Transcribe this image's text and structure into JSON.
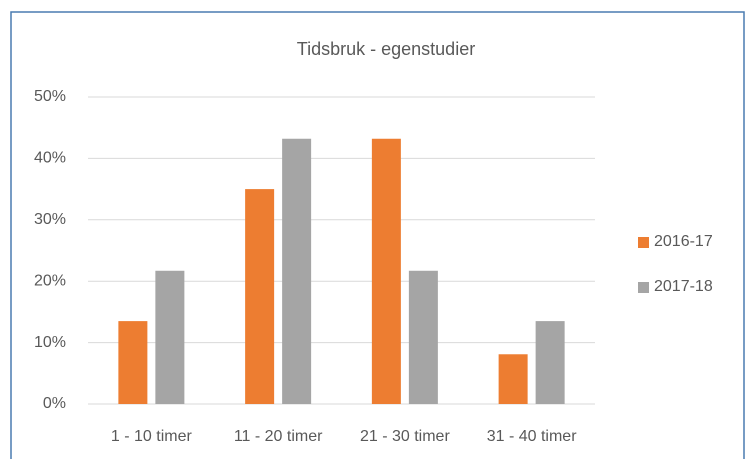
{
  "chart_data": {
    "type": "bar",
    "title": "Tidsbruk - egenstudier",
    "categories": [
      "1 - 10 timer",
      "11 - 20 timer",
      "21 - 30 timer",
      "31 - 40 timer"
    ],
    "series": [
      {
        "name": "2016-17",
        "color": "#ed7d31",
        "values": [
          13.5,
          35.0,
          43.2,
          8.1
        ]
      },
      {
        "name": "2017-18",
        "color": "#a5a5a5",
        "values": [
          21.7,
          43.2,
          21.7,
          13.5
        ]
      }
    ],
    "ylim": [
      0,
      50
    ],
    "yticks": [
      {
        "value": 0,
        "label": "0%"
      },
      {
        "value": 10,
        "label": "10%"
      },
      {
        "value": 20,
        "label": "20%"
      },
      {
        "value": 30,
        "label": "30%"
      },
      {
        "value": 40,
        "label": "40%"
      },
      {
        "value": 50,
        "label": "50%"
      }
    ],
    "grid": true,
    "legend": "right"
  }
}
